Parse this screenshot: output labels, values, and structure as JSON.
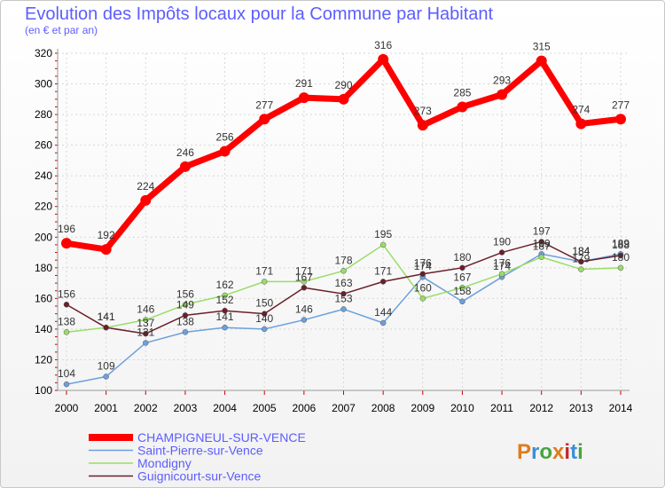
{
  "chart_data": {
    "type": "line",
    "title": "Evolution des Impôts locaux pour la Commune par Habitant",
    "subtitle": "(en € et par an)",
    "x": [
      "2000",
      "2001",
      "2002",
      "2003",
      "2004",
      "2005",
      "2006",
      "2007",
      "2008",
      "2009",
      "2010",
      "2011",
      "2012",
      "2013",
      "2014"
    ],
    "ylim": [
      100,
      320
    ],
    "yticks": [
      100,
      120,
      140,
      160,
      180,
      200,
      220,
      240,
      260,
      280,
      300,
      320
    ],
    "grid": true,
    "series": [
      {
        "name": "CHAMPIGNEUL-SUR-VENCE",
        "color": "#ff0000",
        "values": [
          196,
          192,
          224,
          246,
          256,
          277,
          291,
          290,
          316,
          273,
          285,
          293,
          315,
          274,
          277
        ],
        "labels": [
          "196",
          "192",
          "224",
          "246",
          "256",
          "277",
          "291",
          "290",
          "316",
          "273",
          "285",
          "293",
          "315",
          "274",
          "277"
        ]
      },
      {
        "name": "Saint-Pierre-sur-Vence",
        "color": "#6ca0dc",
        "values": [
          104,
          109,
          131,
          138,
          141,
          140,
          146,
          153,
          144,
          174,
          158,
          174,
          189,
          184,
          189
        ],
        "labels": [
          "104",
          "109",
          "131",
          "138",
          "141",
          "140",
          "146",
          "153",
          "144",
          "174",
          "158",
          "174",
          "189",
          "184",
          "189"
        ]
      },
      {
        "name": "Mondigny",
        "color": "#99dd66",
        "values": [
          138,
          141,
          146,
          156,
          162,
          171,
          171,
          178,
          195,
          160,
          167,
          176,
          187,
          179,
          180
        ],
        "labels": [
          "138",
          "141",
          "146",
          "156",
          "162",
          "171",
          "171",
          "178",
          "195",
          "160",
          "167",
          "176",
          "187",
          "179",
          "180"
        ]
      },
      {
        "name": "Guignicourt-sur-Vence",
        "color": "#6b1f2a",
        "values": [
          156,
          141,
          137,
          149,
          152,
          150,
          167,
          163,
          171,
          176,
          180,
          190,
          197,
          184,
          188
        ],
        "labels": [
          "156",
          "141",
          "137",
          "149",
          "152",
          "150",
          "167",
          "163",
          "171",
          "176",
          "180",
          "190",
          "197",
          "184",
          "188"
        ]
      }
    ],
    "legend_position": "bottom-left"
  },
  "logo": {
    "text": "Proxiti"
  }
}
